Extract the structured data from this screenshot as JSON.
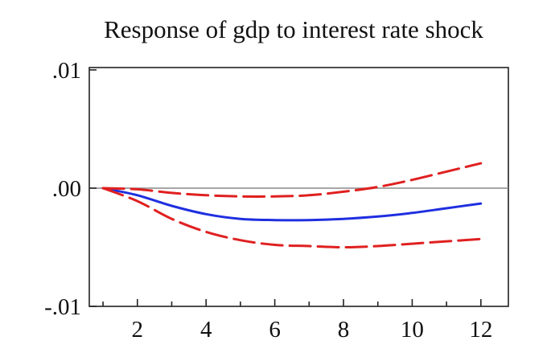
{
  "chart_data": {
    "type": "line",
    "title": "Response of gdp to interest rate shock",
    "xlabel": "",
    "ylabel": "",
    "xlim": [
      0.6,
      12.8
    ],
    "ylim": [
      -0.01,
      0.0102
    ],
    "x_ticks": [
      2,
      4,
      6,
      8,
      10,
      12
    ],
    "x_tick_labels": [
      "2",
      "4",
      "6",
      "8",
      "10",
      "12"
    ],
    "y_ticks": [
      0.01,
      0.0,
      -0.01
    ],
    "y_tick_labels": [
      ".01",
      ".00",
      "-.01"
    ],
    "zero_line": true,
    "grid": false,
    "series": [
      {
        "role": "response",
        "style": "solid",
        "color": "#1f2fe0",
        "x": [
          1,
          2,
          3,
          4,
          5,
          6,
          7,
          8,
          9,
          10,
          11,
          12
        ],
        "values": [
          0.0,
          -0.0006,
          -0.0015,
          -0.0022,
          -0.0026,
          -0.0027,
          -0.0027,
          -0.0026,
          -0.0024,
          -0.0021,
          -0.0017,
          -0.0013
        ]
      },
      {
        "role": "upper_band",
        "style": "dashed",
        "color": "#e02020",
        "x": [
          1,
          2,
          3,
          4,
          5,
          6,
          7,
          8,
          9,
          10,
          11,
          12
        ],
        "values": [
          0.0,
          -0.0001,
          -0.0004,
          -0.0006,
          -0.0007,
          -0.0007,
          -0.0006,
          -0.0003,
          0.0001,
          0.0007,
          0.0014,
          0.0021
        ]
      },
      {
        "role": "lower_band",
        "style": "dashed",
        "color": "#e02020",
        "x": [
          1,
          2,
          3,
          4,
          5,
          6,
          7,
          8,
          9,
          10,
          11,
          12
        ],
        "values": [
          0.0,
          -0.0011,
          -0.0026,
          -0.0037,
          -0.0044,
          -0.0048,
          -0.0049,
          -0.005,
          -0.0049,
          -0.0047,
          -0.0045,
          -0.0043
        ]
      }
    ]
  }
}
